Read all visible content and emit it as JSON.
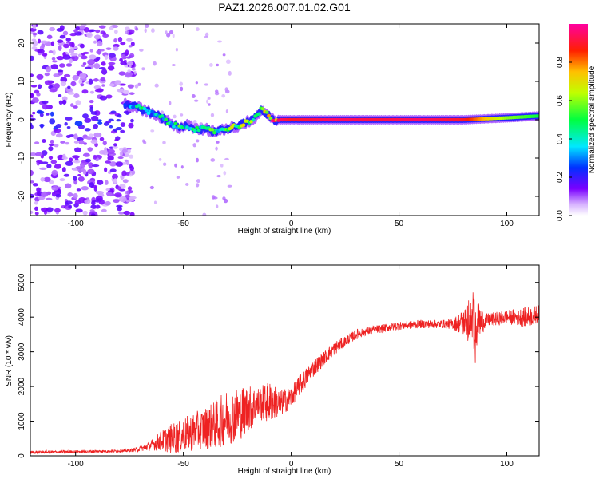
{
  "title": "PAZ1.2026.007.01.02.G01",
  "colors": {
    "snr_line": "#ee2222",
    "frame": "#000000"
  },
  "chart_data": [
    {
      "type": "heatmap",
      "xlabel": "Height of straight line (km)",
      "ylabel": "Frequency (Hz)",
      "xlim": [
        -121,
        115
      ],
      "ylim": [
        -25,
        25
      ],
      "xticks": [
        -100,
        -50,
        0,
        50,
        100
      ],
      "yticks": [
        -20,
        -10,
        0,
        10,
        20
      ],
      "xtick_labels": [
        "-100",
        "-50",
        "0",
        "50",
        "100"
      ],
      "ytick_labels": [
        "-20",
        "-10",
        "0",
        "10",
        "20"
      ],
      "ridge": {
        "x": [
          -77,
          -72,
          -68,
          -64,
          -60,
          -56,
          -52,
          -48,
          -44,
          -40,
          -36,
          -32,
          -28,
          -24,
          -20,
          -16,
          -14,
          -12,
          -10,
          -8,
          -5,
          0,
          20,
          40,
          60,
          80,
          100,
          115
        ],
        "y": [
          4,
          3.5,
          2.5,
          1.5,
          0.5,
          -1,
          -2,
          -1.5,
          -2.5,
          -2.5,
          -3,
          -2.5,
          -2,
          -1.5,
          -0.5,
          1,
          2.5,
          2,
          0.8,
          0,
          0,
          0,
          0,
          0,
          0,
          0,
          0.5,
          1
        ],
        "amplitude": [
          0.25,
          0.35,
          0.45,
          0.35,
          0.4,
          0.4,
          0.45,
          0.35,
          0.5,
          0.4,
          0.5,
          0.4,
          0.55,
          0.5,
          0.6,
          0.55,
          0.5,
          0.6,
          0.7,
          0.85,
          0.95,
          0.9,
          0.95,
          0.92,
          0.95,
          0.9,
          0.6,
          0.5
        ]
      },
      "noise_region_x": [
        -121,
        -77
      ],
      "colorbar": {
        "label": "Normalized spectral amplitude",
        "range": [
          0,
          1
        ],
        "ticks": [
          0.0,
          0.2,
          0.4,
          0.6,
          0.8
        ],
        "tick_labels": [
          "0.0",
          "0.2",
          "0.4",
          "0.6",
          "0.8"
        ]
      }
    },
    {
      "type": "line",
      "xlabel": "Height of straight line (km)",
      "ylabel": "SNR (10 * v/v)",
      "xlim": [
        -121,
        115
      ],
      "ylim": [
        0,
        5500
      ],
      "xticks": [
        -100,
        -50,
        0,
        50,
        100
      ],
      "yticks": [
        0,
        1000,
        2000,
        3000,
        4000,
        5000
      ],
      "xtick_labels": [
        "-100",
        "-50",
        "0",
        "50",
        "100"
      ],
      "ytick_labels": [
        "0",
        "1000",
        "2000",
        "3000",
        "4000",
        "5000"
      ],
      "series": [
        {
          "name": "SNR",
          "x": [
            -121,
            -100,
            -80,
            -75,
            -70,
            -65,
            -60,
            -55,
            -50,
            -45,
            -40,
            -35,
            -30,
            -25,
            -20,
            -15,
            -10,
            -5,
            0,
            5,
            10,
            15,
            20,
            25,
            30,
            35,
            40,
            50,
            60,
            70,
            75,
            80,
            85,
            90,
            100,
            110,
            115
          ],
          "y": [
            100,
            120,
            140,
            150,
            200,
            300,
            450,
            500,
            600,
            700,
            800,
            900,
            1100,
            1200,
            1350,
            1500,
            1550,
            1500,
            1700,
            2100,
            2500,
            2800,
            3100,
            3300,
            3500,
            3600,
            3650,
            3750,
            3800,
            3800,
            3800,
            3850,
            3800,
            3900,
            4000,
            4000,
            4100
          ],
          "noise": [
            40,
            40,
            40,
            40,
            80,
            150,
            300,
            450,
            500,
            550,
            600,
            700,
            800,
            800,
            700,
            500,
            600,
            400,
            300,
            300,
            250,
            200,
            200,
            150,
            150,
            120,
            120,
            120,
            120,
            120,
            150,
            400,
            800,
            200,
            200,
            300,
            250
          ]
        }
      ]
    }
  ]
}
